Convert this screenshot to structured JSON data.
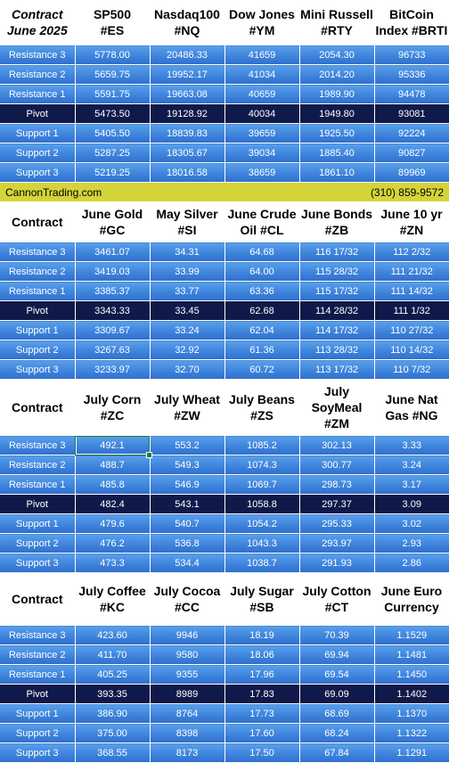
{
  "sections": [
    {
      "headers": [
        {
          "lines": [
            "Contract",
            "June 2025"
          ],
          "italic": true
        },
        {
          "lines": [
            "SP500",
            "#ES"
          ]
        },
        {
          "lines": [
            "Nasdaq100",
            "#NQ"
          ]
        },
        {
          "lines": [
            "Dow Jones",
            "#YM"
          ]
        },
        {
          "lines": [
            "Mini Russell",
            "#RTY"
          ]
        },
        {
          "lines": [
            "BitCoin",
            "Index #BRTI"
          ]
        }
      ],
      "rows": [
        {
          "label": "Resistance 3",
          "values": [
            "5778.00",
            "20486.33",
            "41659",
            "2054.30",
            "96733"
          ]
        },
        {
          "label": "Resistance 2",
          "values": [
            "5659.75",
            "19952.17",
            "41034",
            "2014.20",
            "95336"
          ]
        },
        {
          "label": "Resistance 1",
          "values": [
            "5591.75",
            "19663.08",
            "40659",
            "1989.90",
            "94478"
          ]
        },
        {
          "label": "Pivot",
          "values": [
            "5473.50",
            "19128.92",
            "40034",
            "1949.80",
            "93081"
          ]
        },
        {
          "label": "Support 1",
          "values": [
            "5405.50",
            "18839.83",
            "39659",
            "1925.50",
            "92224"
          ]
        },
        {
          "label": "Support 2",
          "values": [
            "5287.25",
            "18305.67",
            "39034",
            "1885.40",
            "90827"
          ]
        },
        {
          "label": "Support 3",
          "values": [
            "5219.25",
            "18016.58",
            "38659",
            "1861.10",
            "89969"
          ]
        }
      ]
    },
    {
      "headers": [
        {
          "lines": [
            "Contract"
          ]
        },
        {
          "lines": [
            "June Gold",
            "#GC"
          ]
        },
        {
          "lines": [
            "May Silver",
            "#SI"
          ]
        },
        {
          "lines": [
            "June Crude",
            "Oil #CL"
          ]
        },
        {
          "lines": [
            "June Bonds",
            "#ZB"
          ]
        },
        {
          "lines": [
            "June 10 yr",
            "#ZN"
          ]
        }
      ],
      "rows": [
        {
          "label": "Resistance 3",
          "values": [
            "3461.07",
            "34.31",
            "64.68",
            "116 17/32",
            "112  2/32"
          ]
        },
        {
          "label": "Resistance 2",
          "values": [
            "3419.03",
            "33.99",
            "64.00",
            "115 28/32",
            "111 21/32"
          ]
        },
        {
          "label": "Resistance 1",
          "values": [
            "3385.37",
            "33.77",
            "63.36",
            "115 17/32",
            "111 14/32"
          ]
        },
        {
          "label": "Pivot",
          "values": [
            "3343.33",
            "33.45",
            "62.68",
            "114 28/32",
            "111  1/32"
          ]
        },
        {
          "label": "Support 1",
          "values": [
            "3309.67",
            "33.24",
            "62.04",
            "114 17/32",
            "110 27/32"
          ]
        },
        {
          "label": "Support 2",
          "values": [
            "3267.63",
            "32.92",
            "61.36",
            "113 28/32",
            "110 14/32"
          ]
        },
        {
          "label": "Support 3",
          "values": [
            "3233.97",
            "32.70",
            "60.72",
            "113 17/32",
            "110  7/32"
          ]
        }
      ]
    },
    {
      "headers": [
        {
          "lines": [
            "Contract"
          ]
        },
        {
          "lines": [
            "July Corn",
            "#ZC"
          ]
        },
        {
          "lines": [
            "July  Wheat",
            "#ZW"
          ]
        },
        {
          "lines": [
            "July Beans",
            "#ZS"
          ]
        },
        {
          "lines": [
            "July",
            "SoyMeal",
            "#ZM"
          ]
        },
        {
          "lines": [
            "June Nat",
            "Gas #NG"
          ]
        }
      ],
      "rows": [
        {
          "label": "Resistance 3",
          "values": [
            "492.1",
            "553.2",
            "1085.2",
            "302.13",
            "3.33"
          ]
        },
        {
          "label": "Resistance 2",
          "values": [
            "488.7",
            "549.3",
            "1074.3",
            "300.77",
            "3.24"
          ]
        },
        {
          "label": "Resistance 1",
          "values": [
            "485.8",
            "546.9",
            "1069.7",
            "298.73",
            "3.17"
          ]
        },
        {
          "label": "Pivot",
          "values": [
            "482.4",
            "543.1",
            "1058.8",
            "297.37",
            "3.09"
          ]
        },
        {
          "label": "Support 1",
          "values": [
            "479.6",
            "540.7",
            "1054.2",
            "295.33",
            "3.02"
          ]
        },
        {
          "label": "Support 2",
          "values": [
            "476.2",
            "536.8",
            "1043.3",
            "293.97",
            "2.93"
          ]
        },
        {
          "label": "Support 3",
          "values": [
            "473.3",
            "534.4",
            "1038.7",
            "291.93",
            "2.86"
          ]
        }
      ]
    },
    {
      "headers": [
        {
          "lines": [
            "Contract"
          ]
        },
        {
          "lines": [
            "July Coffee",
            "#KC"
          ]
        },
        {
          "lines": [
            "July Cocoa",
            "#CC"
          ]
        },
        {
          "lines": [
            "July Sugar",
            "#SB"
          ]
        },
        {
          "lines": [
            "July Cotton",
            "#CT"
          ]
        },
        {
          "lines": [
            "June Euro",
            "Currency"
          ]
        }
      ],
      "rows": [
        {
          "label": "Resistance 3",
          "values": [
            "423.60",
            "9946",
            "18.19",
            "70.39",
            "1.1529"
          ]
        },
        {
          "label": "Resistance 2",
          "values": [
            "411.70",
            "9580",
            "18.06",
            "69.94",
            "1.1481"
          ]
        },
        {
          "label": "Resistance 1",
          "values": [
            "405.25",
            "9355",
            "17.96",
            "69.54",
            "1.1450"
          ]
        },
        {
          "label": "Pivot",
          "values": [
            "393.35",
            "8989",
            "17.83",
            "69.09",
            "1.1402"
          ]
        },
        {
          "label": "Support 1",
          "values": [
            "386.90",
            "8764",
            "17.73",
            "68.69",
            "1.1370"
          ]
        },
        {
          "label": "Support 2",
          "values": [
            "375.00",
            "8398",
            "17.60",
            "68.24",
            "1.1322"
          ]
        },
        {
          "label": "Support 3",
          "values": [
            "368.55",
            "8173",
            "17.50",
            "67.84",
            "1.1291"
          ]
        }
      ]
    }
  ],
  "banner": {
    "left": "CannonTrading.com",
    "right": "(310) 859-9572"
  },
  "colors": {
    "row_blue": "#3e84dc",
    "pivot_navy": "#0f1a4a",
    "banner_yellow": "#d4d43a",
    "selection_green": "#1e7a3c"
  }
}
